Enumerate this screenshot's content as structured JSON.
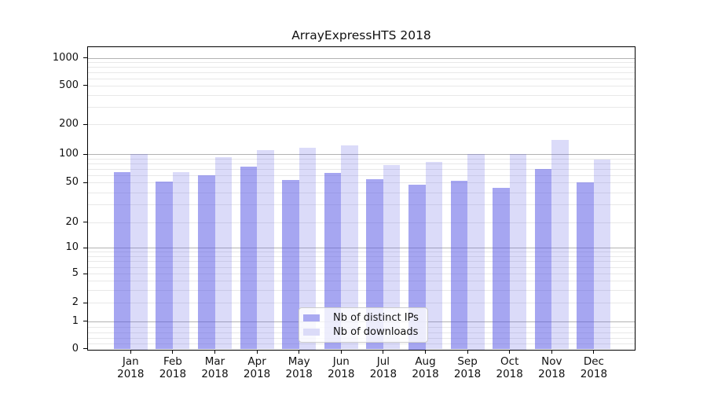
{
  "title": "ArrayExpressHTS 2018",
  "colors": {
    "bar_ips": "rgba(84,84,228,0.52)",
    "bar_downloads": "rgba(84,84,228,0.21)",
    "swatch_ips": "#a9a9f1",
    "swatch_downloads": "#dbdbf8",
    "grid_major": "#b3b3b3",
    "grid_minor": "#e8e8e8",
    "axis_line": "#000000",
    "text": "#111111"
  },
  "legend": {
    "items": [
      {
        "label": "Nb of distinct IPs"
      },
      {
        "label": "Nb of downloads"
      }
    ]
  },
  "chart_data": {
    "type": "bar",
    "title": "ArrayExpressHTS 2018",
    "categories": [
      "Jan",
      "Feb",
      "Mar",
      "Apr",
      "May",
      "Jun",
      "Jul",
      "Aug",
      "Sep",
      "Oct",
      "Nov",
      "Dec"
    ],
    "year": "2018",
    "series": [
      {
        "name": "Nb of distinct IPs",
        "values": [
          65,
          51,
          60,
          74,
          53,
          63,
          54,
          48,
          52,
          44,
          69,
          50
        ]
      },
      {
        "name": "Nb of downloads",
        "values": [
          100,
          64,
          93,
          110,
          117,
          123,
          76,
          83,
          100,
          100,
          140,
          87
        ]
      }
    ],
    "xlabel": "",
    "ylabel": "",
    "yscale": "symlog",
    "yticks": [
      0,
      1,
      2,
      5,
      10,
      20,
      50,
      100,
      200,
      500,
      1000
    ],
    "ylim": [
      0,
      1300
    ],
    "grid": true,
    "legend_position": "lower-center"
  }
}
